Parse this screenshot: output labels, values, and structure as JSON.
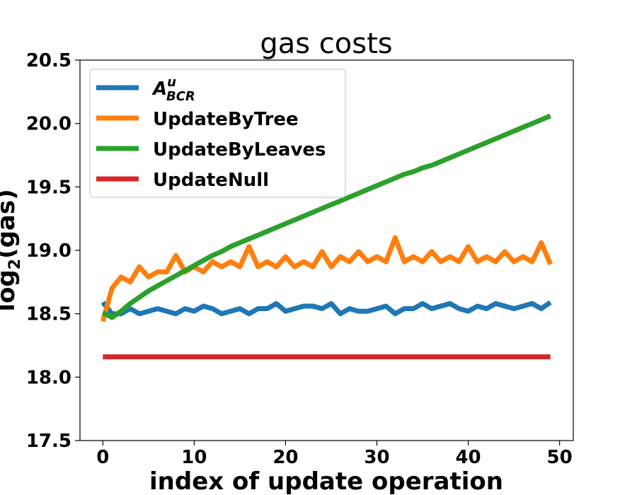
{
  "chart_data": {
    "type": "line",
    "title": "gas costs",
    "xlabel": "index of update operation",
    "ylabel": "log",
    "ylabel_sub": "2",
    "ylabel_tail": "(gas)",
    "xlim": [
      -2.5,
      51.5
    ],
    "ylim": [
      17.5,
      20.5
    ],
    "xticks": [
      0,
      10,
      20,
      30,
      40,
      50
    ],
    "yticks": [
      "17.5",
      "18.0",
      "18.5",
      "19.0",
      "19.5",
      "20.0",
      "20.5"
    ],
    "legend_position": "upper-left",
    "grid": false,
    "x": [
      0,
      1,
      2,
      3,
      4,
      5,
      6,
      7,
      8,
      9,
      10,
      11,
      12,
      13,
      14,
      15,
      16,
      17,
      18,
      19,
      20,
      21,
      22,
      23,
      24,
      25,
      26,
      27,
      28,
      29,
      30,
      31,
      32,
      33,
      34,
      35,
      36,
      37,
      38,
      39,
      40,
      41,
      42,
      43,
      44,
      45,
      46,
      47,
      48,
      49
    ],
    "series": [
      {
        "name": "A",
        "name_sup": "u",
        "name_sub": "BCR",
        "color": "#1f77b4",
        "values": [
          18.59,
          18.5,
          18.5,
          18.54,
          18.5,
          18.52,
          18.54,
          18.52,
          18.5,
          18.54,
          18.52,
          18.56,
          18.54,
          18.5,
          18.52,
          18.54,
          18.5,
          18.54,
          18.54,
          18.58,
          18.52,
          18.54,
          18.56,
          18.56,
          18.54,
          18.58,
          18.5,
          18.54,
          18.52,
          18.52,
          18.54,
          18.56,
          18.5,
          18.54,
          18.54,
          18.58,
          18.54,
          18.56,
          18.58,
          18.54,
          18.52,
          18.56,
          18.54,
          18.58,
          18.56,
          18.54,
          18.56,
          18.58,
          18.54,
          18.59
        ]
      },
      {
        "name": "UpdateByTree",
        "color": "#ff7f0e",
        "values": [
          18.44,
          18.7,
          18.79,
          18.75,
          18.87,
          18.79,
          18.83,
          18.83,
          18.96,
          18.83,
          18.87,
          18.83,
          18.91,
          18.87,
          18.91,
          18.87,
          19.03,
          18.87,
          18.91,
          18.87,
          18.95,
          18.87,
          18.91,
          18.87,
          18.99,
          18.87,
          18.95,
          18.91,
          18.99,
          18.91,
          18.95,
          18.91,
          19.1,
          18.91,
          18.95,
          18.91,
          18.99,
          18.91,
          18.95,
          18.91,
          19.03,
          18.91,
          18.95,
          18.91,
          18.99,
          18.91,
          18.95,
          18.91,
          19.06,
          18.89
        ]
      },
      {
        "name": "UpdateByLeaves",
        "color": "#2ca02c",
        "values": [
          18.51,
          18.47,
          18.52,
          18.58,
          18.63,
          18.68,
          18.72,
          18.76,
          18.8,
          18.84,
          18.88,
          18.92,
          18.96,
          18.99,
          19.03,
          19.06,
          19.09,
          19.12,
          19.15,
          19.18,
          19.21,
          19.24,
          19.27,
          19.3,
          19.33,
          19.36,
          19.39,
          19.42,
          19.45,
          19.48,
          19.51,
          19.54,
          19.57,
          19.6,
          19.62,
          19.65,
          19.67,
          19.7,
          19.73,
          19.76,
          19.79,
          19.82,
          19.85,
          19.88,
          19.91,
          19.94,
          19.97,
          20.0,
          20.03,
          20.06
        ]
      },
      {
        "name": "UpdateNull",
        "color": "#d62728",
        "values": [
          18.16,
          18.16,
          18.16,
          18.16,
          18.16,
          18.16,
          18.16,
          18.16,
          18.16,
          18.16,
          18.16,
          18.16,
          18.16,
          18.16,
          18.16,
          18.16,
          18.16,
          18.16,
          18.16,
          18.16,
          18.16,
          18.16,
          18.16,
          18.16,
          18.16,
          18.16,
          18.16,
          18.16,
          18.16,
          18.16,
          18.16,
          18.16,
          18.16,
          18.16,
          18.16,
          18.16,
          18.16,
          18.16,
          18.16,
          18.16,
          18.16,
          18.16,
          18.16,
          18.16,
          18.16,
          18.16,
          18.16,
          18.16,
          18.16,
          18.16
        ]
      }
    ]
  }
}
